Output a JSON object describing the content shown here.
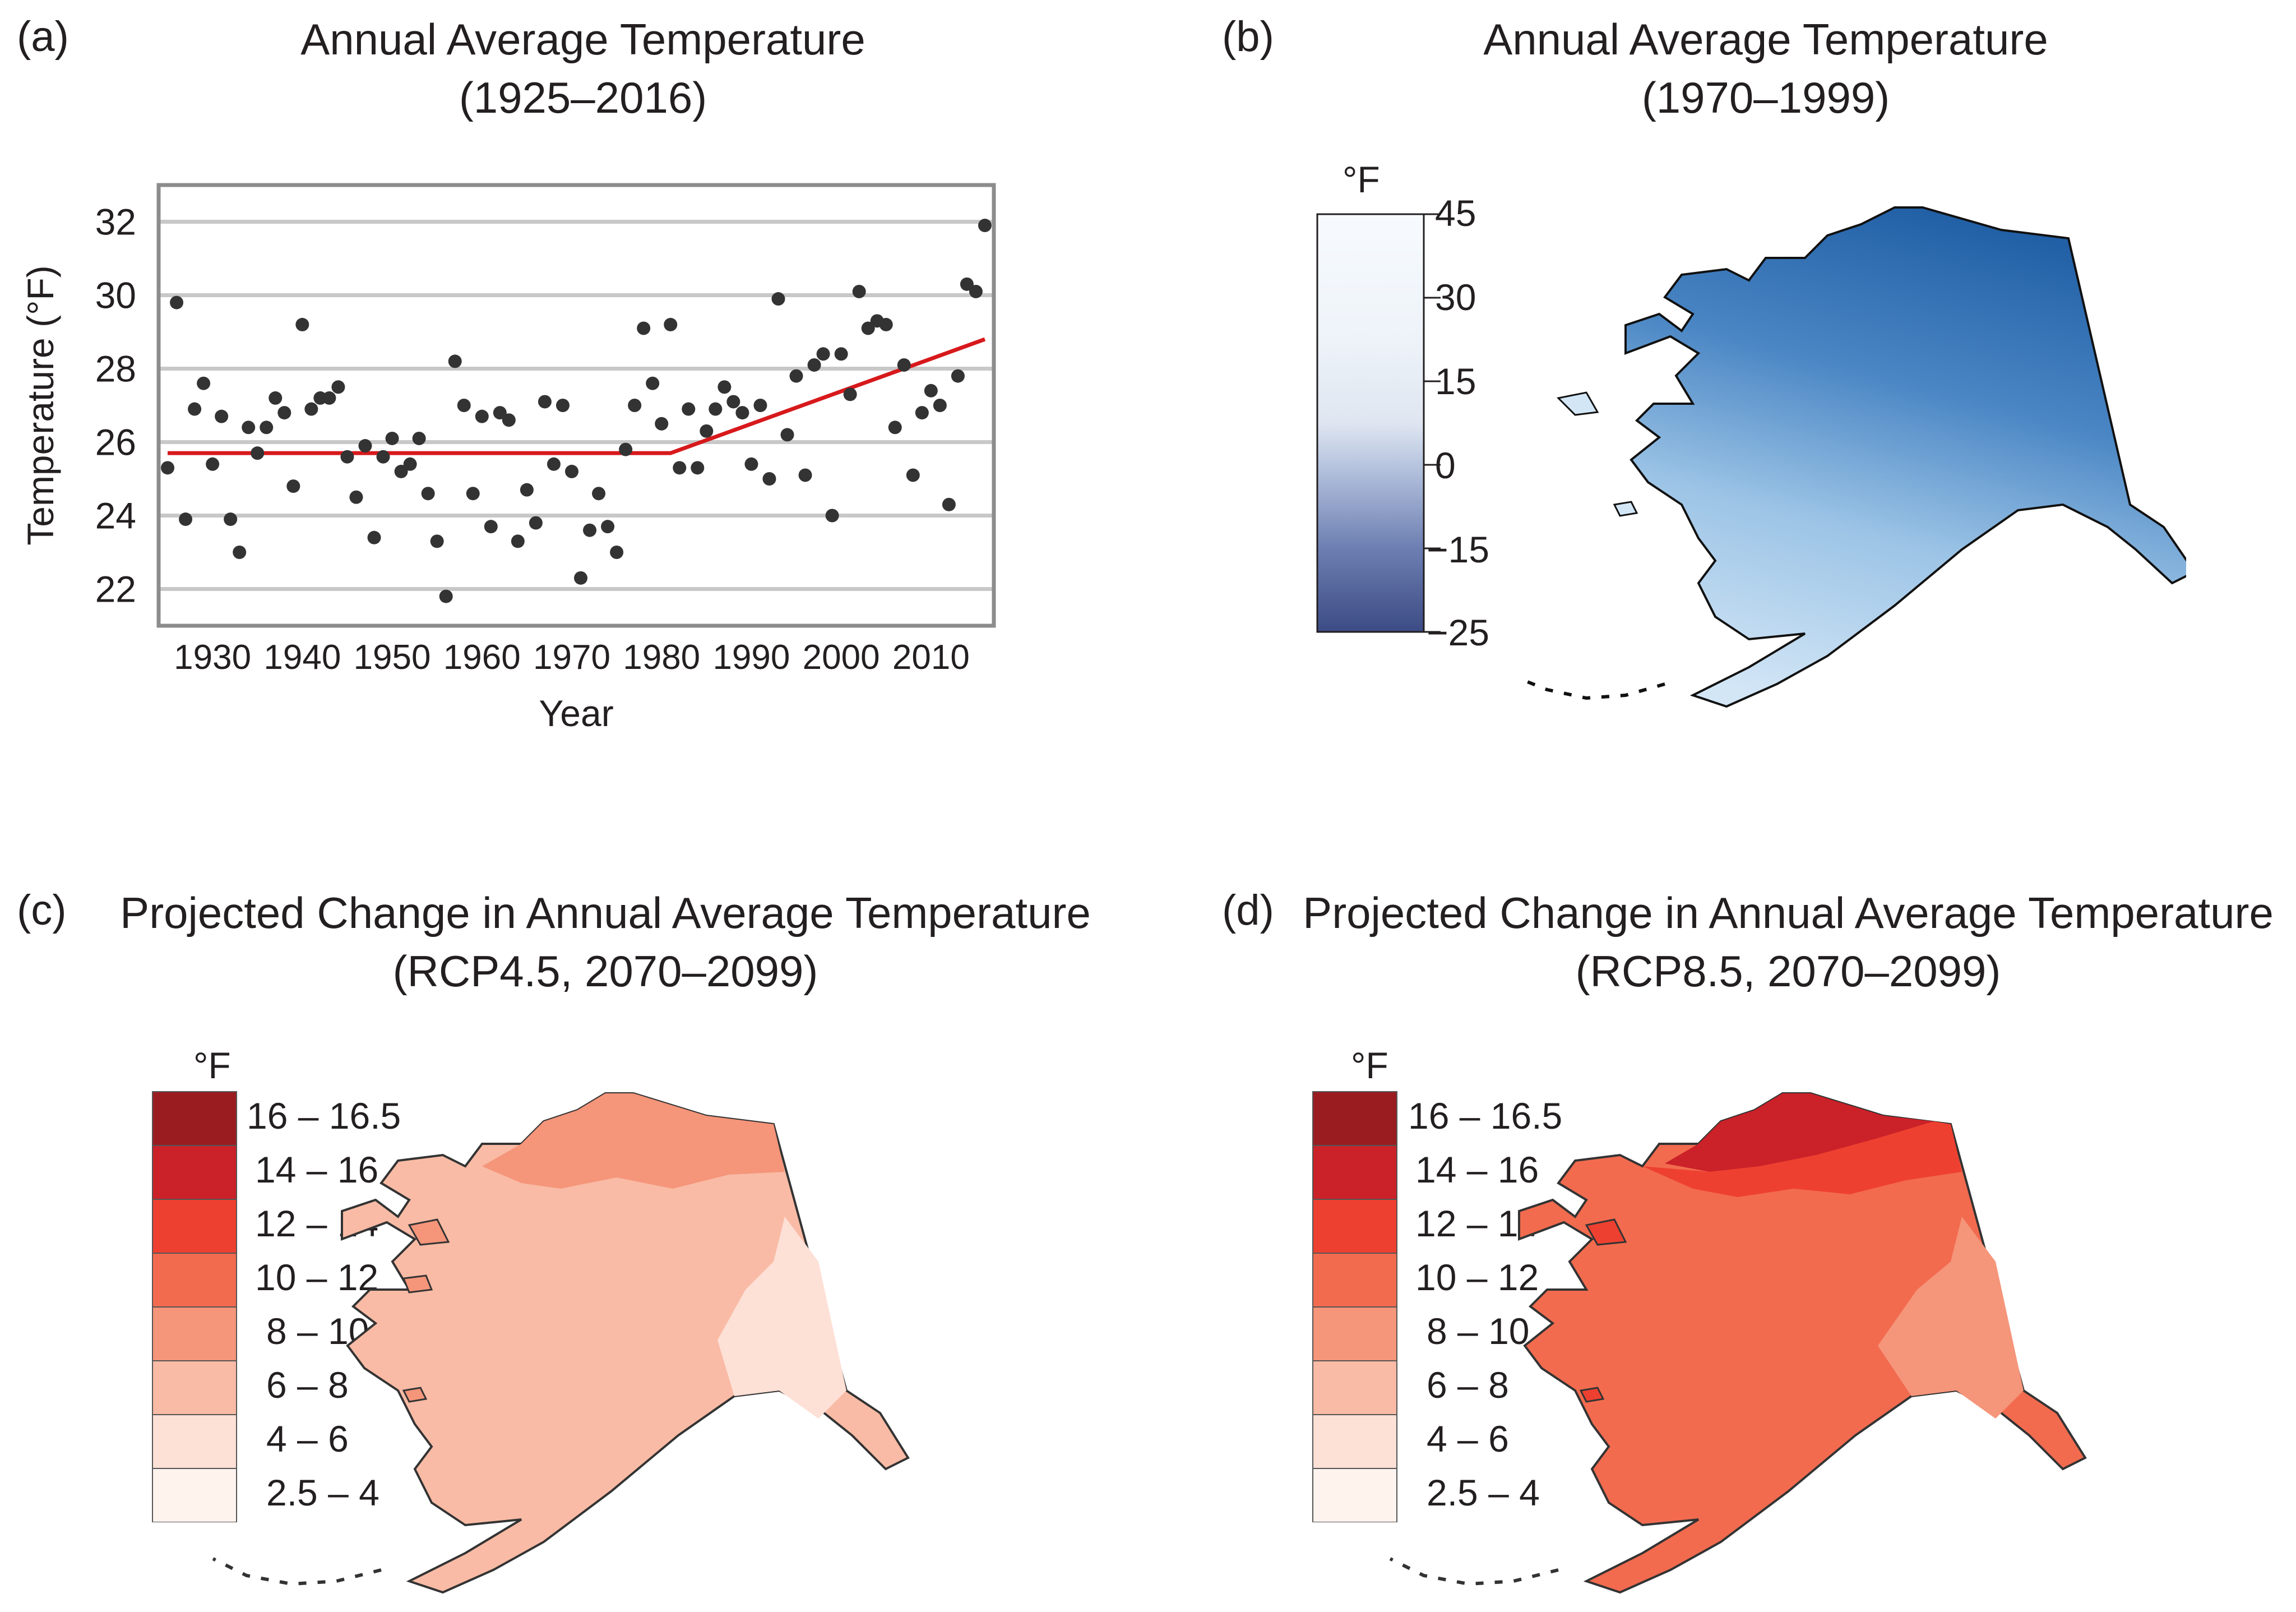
{
  "panels": {
    "a": {
      "letter": "(a)",
      "title_line1": "Annual Average Temperature",
      "title_line2": "(1925–2016)"
    },
    "b": {
      "letter": "(b)",
      "title_line1": "Annual Average Temperature",
      "title_line2": "(1970–1999)"
    },
    "c": {
      "letter": "(c)",
      "title_line1": "Projected Change in Annual Average Temperature",
      "title_line2": "(RCP4.5, 2070–2099)"
    },
    "d": {
      "letter": "(d)",
      "title_line1": "Projected Change in Annual Average Temperature",
      "title_line2": "(RCP8.5, 2070–2099)"
    }
  },
  "colorbar_b": {
    "unit": "°F",
    "ticks": [
      "45",
      "30",
      "15",
      "0",
      "−15",
      "−25"
    ]
  },
  "legend_cd": {
    "unit": "°F",
    "classes": [
      {
        "label": "16 – 16.5",
        "color": "#9b1c20"
      },
      {
        "label": "14 – 16",
        "color": "#cb2128"
      },
      {
        "label": "12 – 14",
        "color": "#ee4030"
      },
      {
        "label": "10 – 12",
        "color": "#f26b4f"
      },
      {
        "label": "8 – 10",
        "color": "#f5957a"
      },
      {
        "label": "6 – 8",
        "color": "#f9bba5"
      },
      {
        "label": "4 – 6",
        "color": "#fde0d6"
      },
      {
        "label": "2.5 – 4",
        "color": "#fff3ee"
      }
    ]
  },
  "colors": {
    "trend": "#d7191c",
    "points": "#333333",
    "grid": "#c8c8c8",
    "frame": "#8c8c8c",
    "alaska_b_dark": "#1d5ea8",
    "alaska_b_light": "#cfe3f3",
    "alaska_c_main": "#f9bba5",
    "alaska_d_main": "#f26b4f"
  },
  "chart_data": {
    "type": "scatter",
    "title": "Annual Average Temperature",
    "subtitle": "(1925–2016)",
    "xlabel": "Year",
    "ylabel": "Temperature (°F)",
    "xlim": [
      1924,
      2017
    ],
    "ylim": [
      21,
      33
    ],
    "xticks": [
      1930,
      1940,
      1950,
      1960,
      1970,
      1980,
      1990,
      2000,
      2010
    ],
    "yticks": [
      22,
      24,
      26,
      28,
      30,
      32
    ],
    "grid": true,
    "x": [
      1925,
      1926,
      1927,
      1928,
      1929,
      1930,
      1931,
      1932,
      1933,
      1934,
      1935,
      1936,
      1937,
      1938,
      1939,
      1940,
      1941,
      1942,
      1943,
      1944,
      1945,
      1946,
      1947,
      1948,
      1949,
      1950,
      1951,
      1952,
      1953,
      1954,
      1955,
      1956,
      1957,
      1958,
      1959,
      1960,
      1961,
      1962,
      1963,
      1964,
      1965,
      1966,
      1967,
      1968,
      1969,
      1970,
      1971,
      1972,
      1973,
      1974,
      1975,
      1976,
      1977,
      1978,
      1979,
      1980,
      1981,
      1982,
      1983,
      1984,
      1985,
      1986,
      1987,
      1988,
      1989,
      1990,
      1991,
      1992,
      1993,
      1994,
      1995,
      1996,
      1997,
      1998,
      1999,
      2000,
      2001,
      2002,
      2003,
      2004,
      2005,
      2006,
      2007,
      2008,
      2009,
      2010,
      2011,
      2012,
      2013,
      2014,
      2015,
      2016
    ],
    "y": [
      25.3,
      29.8,
      23.9,
      26.9,
      27.6,
      25.4,
      26.7,
      23.9,
      23.0,
      26.4,
      25.7,
      26.4,
      27.2,
      26.8,
      24.8,
      29.2,
      26.9,
      27.2,
      27.2,
      27.5,
      25.6,
      24.5,
      25.9,
      23.4,
      25.6,
      26.1,
      25.2,
      25.4,
      26.1,
      24.6,
      23.3,
      21.8,
      28.2,
      27.0,
      24.6,
      26.7,
      23.7,
      26.8,
      26.6,
      23.3,
      24.7,
      23.8,
      27.1,
      25.4,
      27.0,
      25.2,
      22.3,
      23.6,
      24.6,
      23.7,
      23.0,
      25.8,
      27.0,
      29.1,
      27.6,
      26.5,
      29.2,
      25.3,
      26.9,
      25.3,
      26.3,
      26.9,
      27.5,
      27.1,
      26.8,
      25.4,
      27.0,
      25.0,
      29.9,
      26.2,
      27.8,
      25.1,
      28.1,
      28.4,
      24.0,
      28.4,
      27.3,
      30.1,
      29.1,
      29.3,
      29.2,
      26.4,
      28.1,
      25.1,
      26.8,
      27.4,
      27.0,
      24.3,
      27.8,
      30.3,
      30.1,
      31.9
    ],
    "trend": [
      {
        "x": 1925,
        "y": 25.7
      },
      {
        "x": 1981,
        "y": 25.7
      },
      {
        "x": 2016,
        "y": 28.8
      }
    ]
  }
}
